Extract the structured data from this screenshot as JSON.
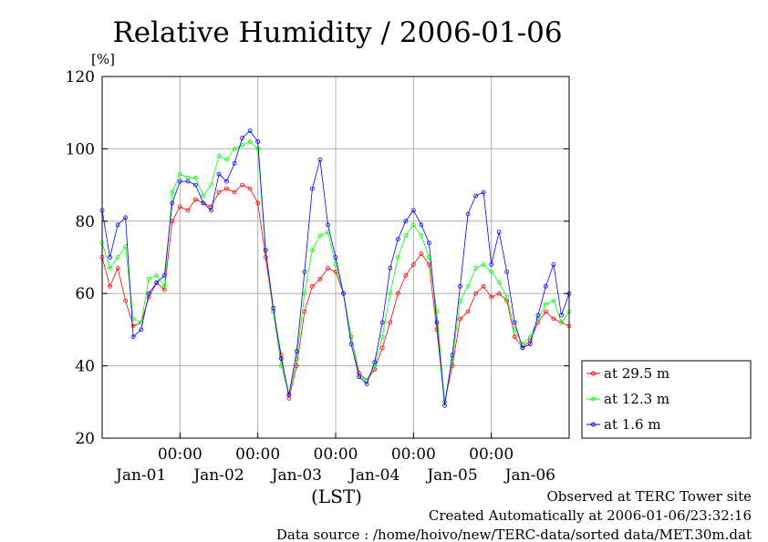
{
  "chart_data": {
    "type": "line",
    "title": "Relative Humidity / 2006-01-06",
    "ylabel": "[%]",
    "xlabel": "(LST)",
    "ylim": [
      20,
      120
    ],
    "y_ticks": [
      "20",
      "40",
      "60",
      "80",
      "100",
      "120"
    ],
    "x_range_days": [
      0,
      6
    ],
    "x_time_ticks": [
      "00:00",
      "00:00",
      "00:00",
      "00:00",
      "00:00"
    ],
    "x_day_labels": [
      "Jan-01",
      "Jan-02",
      "Jan-03",
      "Jan-04",
      "Jan-05",
      "Jan-06"
    ],
    "grid": true,
    "legend_position": "right",
    "series": [
      {
        "name": "at 29.5 m",
        "color": "#ff0000",
        "marker": "circle",
        "x": [
          0.0,
          0.1,
          0.2,
          0.3,
          0.4,
          0.5,
          0.6,
          0.7,
          0.8,
          0.9,
          1.0,
          1.1,
          1.2,
          1.3,
          1.4,
          1.5,
          1.6,
          1.7,
          1.8,
          1.9,
          2.0,
          2.1,
          2.2,
          2.3,
          2.4,
          2.5,
          2.6,
          2.7,
          2.8,
          2.9,
          3.0,
          3.1,
          3.2,
          3.3,
          3.4,
          3.5,
          3.6,
          3.7,
          3.8,
          3.9,
          4.0,
          4.1,
          4.2,
          4.3,
          4.4,
          4.5,
          4.6,
          4.7,
          4.8,
          4.9,
          5.0,
          5.1,
          5.2,
          5.3,
          5.4,
          5.5,
          5.6,
          5.7,
          5.8,
          5.9,
          6.0
        ],
        "values": [
          70,
          62,
          67,
          58,
          51,
          52,
          59,
          63,
          61,
          80,
          84,
          83,
          86,
          85,
          84,
          88,
          89,
          88,
          90,
          89,
          85,
          70,
          55,
          43,
          31,
          40,
          55,
          62,
          64,
          67,
          66,
          60,
          48,
          38,
          36,
          39,
          45,
          52,
          60,
          65,
          68,
          71,
          68,
          50,
          30,
          40,
          53,
          55,
          60,
          62,
          59,
          60,
          58,
          48,
          45,
          47,
          52,
          55,
          53,
          52,
          51
        ]
      },
      {
        "name": "at 12.3 m",
        "color": "#00ff00",
        "marker": "circle",
        "x": [
          0.0,
          0.1,
          0.2,
          0.3,
          0.4,
          0.5,
          0.6,
          0.7,
          0.8,
          0.9,
          1.0,
          1.1,
          1.2,
          1.3,
          1.4,
          1.5,
          1.6,
          1.7,
          1.8,
          1.9,
          2.0,
          2.1,
          2.2,
          2.3,
          2.4,
          2.5,
          2.6,
          2.7,
          2.8,
          2.9,
          3.0,
          3.1,
          3.2,
          3.3,
          3.4,
          3.5,
          3.6,
          3.7,
          3.8,
          3.9,
          4.0,
          4.1,
          4.2,
          4.3,
          4.4,
          4.5,
          4.6,
          4.7,
          4.8,
          4.9,
          5.0,
          5.1,
          5.2,
          5.3,
          5.4,
          5.5,
          5.6,
          5.7,
          5.8,
          5.9,
          6.0
        ],
        "values": [
          74,
          67,
          70,
          73,
          53,
          52,
          64,
          65,
          62,
          88,
          93,
          92,
          92,
          87,
          90,
          98,
          97,
          100,
          101,
          102,
          100,
          72,
          55,
          40,
          32,
          42,
          60,
          72,
          76,
          77,
          68,
          60,
          48,
          37,
          36,
          40,
          48,
          60,
          70,
          76,
          79,
          76,
          70,
          55,
          30,
          42,
          58,
          62,
          67,
          68,
          66,
          63,
          59,
          50,
          46,
          48,
          53,
          57,
          58,
          52,
          55
        ]
      },
      {
        "name": "at 1.6 m",
        "color": "#0000ff",
        "marker": "circle",
        "x": [
          0.0,
          0.1,
          0.2,
          0.3,
          0.4,
          0.5,
          0.6,
          0.7,
          0.8,
          0.9,
          1.0,
          1.1,
          1.2,
          1.3,
          1.4,
          1.5,
          1.6,
          1.7,
          1.8,
          1.9,
          2.0,
          2.1,
          2.2,
          2.3,
          2.4,
          2.5,
          2.6,
          2.7,
          2.8,
          2.9,
          3.0,
          3.1,
          3.2,
          3.3,
          3.4,
          3.5,
          3.6,
          3.7,
          3.8,
          3.9,
          4.0,
          4.1,
          4.2,
          4.3,
          4.4,
          4.5,
          4.6,
          4.7,
          4.8,
          4.9,
          5.0,
          5.1,
          5.2,
          5.3,
          5.4,
          5.5,
          5.6,
          5.7,
          5.8,
          5.9,
          6.0
        ],
        "values": [
          83,
          70,
          79,
          81,
          48,
          50,
          60,
          63,
          65,
          85,
          91,
          91,
          90,
          85,
          83,
          93,
          91,
          96,
          103,
          105,
          102,
          72,
          56,
          42,
          32,
          44,
          66,
          89,
          97,
          79,
          70,
          60,
          46,
          37,
          35,
          41,
          52,
          67,
          75,
          80,
          83,
          79,
          74,
          52,
          29,
          43,
          62,
          82,
          87,
          88,
          68,
          77,
          66,
          52,
          45,
          46,
          54,
          62,
          68,
          54,
          60
        ]
      }
    ]
  },
  "footer": {
    "line1": "Observed at TERC Tower site",
    "line2": "Created Automatically at 2006-01-06/23:32:16",
    "line3": "Data source : /home/hoivo/new/TERC-data/sorted  data/MET.30m.dat"
  },
  "colors": {
    "grid": "#b0b0b0",
    "frame": "#000000"
  }
}
